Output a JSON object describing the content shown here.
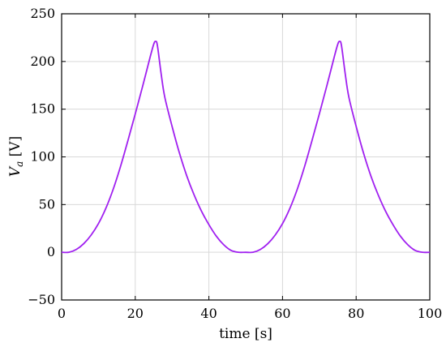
{
  "chart_data": {
    "type": "line",
    "title": "",
    "xlabel": "time [s]",
    "ylabel_symbol": "V",
    "ylabel_subscript": "a",
    "ylabel_unit": " [V]",
    "xlim": [
      0,
      100
    ],
    "ylim": [
      -50,
      250
    ],
    "xticks": [
      "0",
      "20",
      "40",
      "60",
      "80",
      "100"
    ],
    "yticks": [
      "−50",
      "0",
      "50",
      "100",
      "150",
      "200",
      "250"
    ],
    "grid": true,
    "series": [
      {
        "color": "#a020f0",
        "x": [
          0,
          2,
          4,
          6,
          8,
          10,
          12,
          14,
          16,
          18,
          20,
          22,
          24,
          25,
          25.5,
          26,
          27,
          28,
          30,
          32,
          34,
          36,
          38,
          40,
          42,
          44,
          46,
          48,
          50,
          52,
          54,
          56,
          58,
          60,
          62,
          64,
          66,
          68,
          70,
          72,
          74,
          75,
          75.5,
          76,
          77,
          78,
          80,
          82,
          84,
          86,
          88,
          90,
          92,
          94,
          96,
          98,
          100
        ],
        "y": [
          0,
          0,
          3,
          9,
          18,
          30,
          46,
          66,
          90,
          117,
          145,
          174,
          204,
          218,
          221,
          217,
          188,
          163,
          132,
          104,
          80,
          60,
          43,
          29,
          17,
          8,
          2,
          0,
          0,
          0,
          3,
          9,
          18,
          30,
          46,
          66,
          90,
          117,
          145,
          174,
          204,
          218,
          221,
          217,
          188,
          163,
          132,
          104,
          80,
          60,
          43,
          29,
          17,
          8,
          2,
          0,
          0
        ]
      }
    ]
  }
}
